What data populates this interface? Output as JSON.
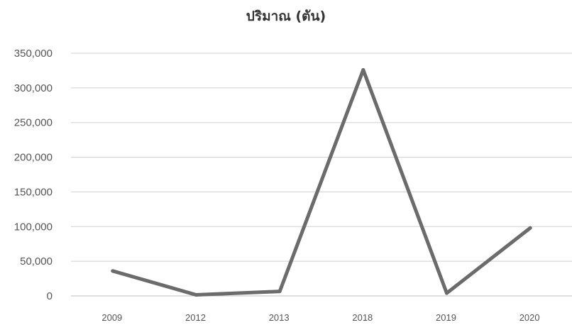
{
  "chart_data": {
    "type": "line",
    "title": "ปริมาณ (ตัน)",
    "xlabel": "",
    "ylabel": "",
    "categories": [
      "2009",
      "2012",
      "2013",
      "2018",
      "2019",
      "2020"
    ],
    "series": [
      {
        "values": [
          36000,
          1500,
          6500,
          326000,
          4000,
          98000
        ]
      }
    ],
    "y_ticks": [
      "0",
      "50,000",
      "100,000",
      "150,000",
      "200,000",
      "250,000",
      "300,000",
      "350,000"
    ],
    "ylim": [
      0,
      350000
    ],
    "grid": true,
    "legend": "none",
    "colors": {
      "line": "#6b6b6b",
      "grid": "#d0d0d0",
      "axis": "#bfbfbf"
    }
  }
}
